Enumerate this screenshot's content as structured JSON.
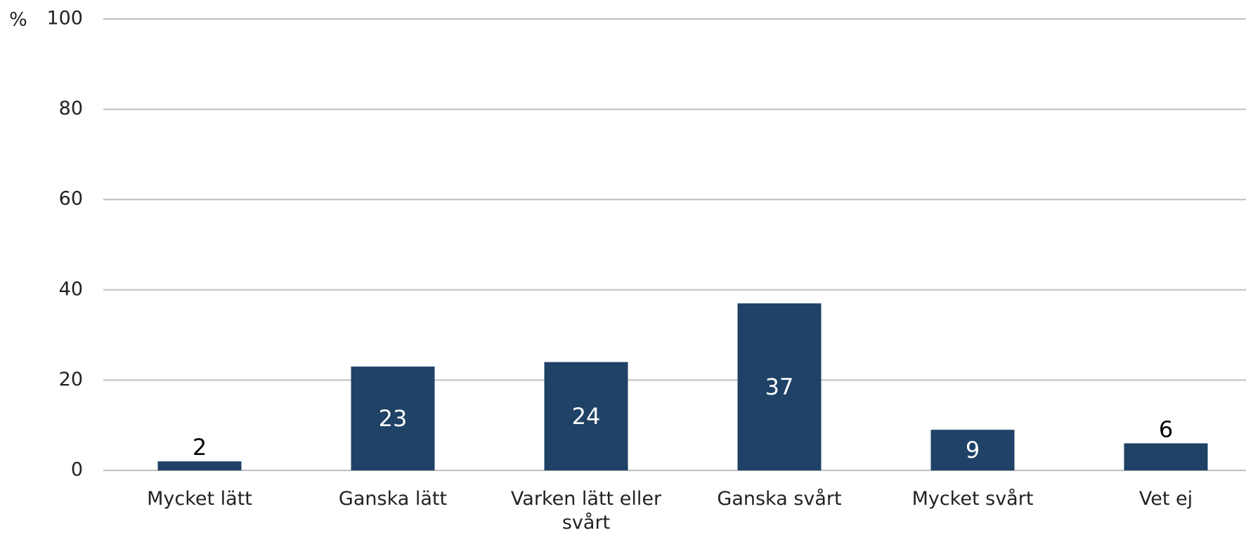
{
  "chart_data": {
    "type": "bar",
    "y_unit": "%",
    "categories": [
      "Mycket lätt",
      "Ganska lätt",
      "Varken lätt eller svårt",
      "Ganska svårt",
      "Mycket svårt",
      "Vet ej"
    ],
    "values": [
      2,
      23,
      24,
      37,
      9,
      6
    ],
    "color": "#1f4266",
    "ylim": [
      0,
      100
    ],
    "yticks": [
      0,
      20,
      40,
      60,
      80,
      100
    ],
    "grid": true
  }
}
